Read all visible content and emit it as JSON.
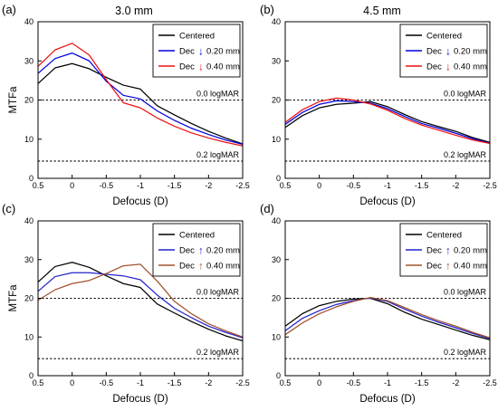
{
  "figure": {
    "panels_titles": [
      "3.0 mm",
      "4.5 mm"
    ]
  },
  "chart_data": [
    {
      "panel_label": "(a)",
      "title": "3.0 mm",
      "type": "line",
      "xlabel": "Defocus (D)",
      "ylabel": "MTFa",
      "xlim": [
        0.5,
        -2.5
      ],
      "ylim": [
        0,
        40
      ],
      "xticks": [
        "0.5",
        "0",
        "-0.5",
        "-1",
        "-1.5",
        "-2",
        "-2.5"
      ],
      "yticks": [
        "0",
        "10",
        "20",
        "30",
        "40"
      ],
      "legend_position": "top-right",
      "ref_lines": [
        {
          "y": 20,
          "label": "0.0 logMAR"
        },
        {
          "y": 4.4,
          "label": "0.2 logMAR"
        }
      ],
      "series": [
        {
          "name": "Centered",
          "color": "#000000",
          "x": [
            0.5,
            0.25,
            0.0,
            -0.25,
            -0.5,
            -0.75,
            -1.0,
            -1.25,
            -1.5,
            -1.75,
            -2.0,
            -2.25,
            -2.5
          ],
          "y": [
            24.2,
            28.2,
            29.3,
            28.0,
            25.8,
            23.8,
            22.8,
            18.5,
            16.2,
            14.0,
            12.0,
            10.3,
            8.8
          ]
        },
        {
          "name": "Dec 0.20 mm",
          "arrow": "down",
          "color": "#0000dd",
          "x": [
            0.5,
            0.25,
            0.0,
            -0.25,
            -0.5,
            -0.75,
            -1.0,
            -1.25,
            -1.5,
            -1.75,
            -2.0,
            -2.25,
            -2.5
          ],
          "y": [
            26.8,
            30.6,
            32.0,
            30.0,
            24.8,
            21.2,
            20.3,
            17.2,
            14.8,
            12.8,
            11.2,
            9.8,
            8.7
          ]
        },
        {
          "name": "Dec 0.40 mm",
          "arrow": "down",
          "color": "#ee1111",
          "x": [
            0.5,
            0.25,
            0.0,
            -0.25,
            -0.5,
            -0.75,
            -1.0,
            -1.25,
            -1.5,
            -1.75,
            -2.0,
            -2.25,
            -2.5
          ],
          "y": [
            28.6,
            32.8,
            34.5,
            31.5,
            25.2,
            19.3,
            18.0,
            15.4,
            13.3,
            11.6,
            10.3,
            9.2,
            8.3
          ]
        }
      ]
    },
    {
      "panel_label": "(b)",
      "title": "4.5 mm",
      "type": "line",
      "xlabel": "Defocus (D)",
      "ylabel": "",
      "xlim": [
        0.5,
        -2.5
      ],
      "ylim": [
        0,
        40
      ],
      "xticks": [
        "0.5",
        "0",
        "-0.5",
        "-1",
        "-1.5",
        "-2",
        "-2.5"
      ],
      "yticks": [
        "0",
        "10",
        "20",
        "30",
        "40"
      ],
      "legend_position": "top-right",
      "ref_lines": [
        {
          "y": 20,
          "label": "0.0 logMAR"
        },
        {
          "y": 4.4,
          "label": "0.2 logMAR"
        }
      ],
      "series": [
        {
          "name": "Centered",
          "color": "#000000",
          "x": [
            0.5,
            0.25,
            0.0,
            -0.25,
            -0.5,
            -0.75,
            -1.0,
            -1.25,
            -1.5,
            -1.75,
            -2.0,
            -2.25,
            -2.5
          ],
          "y": [
            13.0,
            16.0,
            18.0,
            18.9,
            19.2,
            19.6,
            18.3,
            16.3,
            14.5,
            13.2,
            12.0,
            10.4,
            9.2
          ]
        },
        {
          "name": "Dec 0.20 mm",
          "arrow": "down",
          "color": "#0000dd",
          "x": [
            0.5,
            0.25,
            0.0,
            -0.25,
            -0.5,
            -0.75,
            -1.0,
            -1.25,
            -1.5,
            -1.75,
            -2.0,
            -2.25,
            -2.5
          ],
          "y": [
            13.8,
            16.8,
            18.9,
            19.8,
            19.6,
            19.2,
            17.8,
            15.8,
            14.0,
            12.8,
            11.5,
            10.1,
            9.0
          ]
        },
        {
          "name": "Dec 0.40 mm",
          "arrow": "down",
          "color": "#ee1111",
          "x": [
            0.5,
            0.25,
            0.0,
            -0.25,
            -0.5,
            -0.75,
            -1.0,
            -1.25,
            -1.5,
            -1.75,
            -2.0,
            -2.25,
            -2.5
          ],
          "y": [
            14.3,
            17.5,
            19.6,
            20.5,
            20.0,
            19.0,
            17.4,
            15.3,
            13.6,
            12.3,
            11.0,
            9.8,
            8.9
          ]
        }
      ]
    },
    {
      "panel_label": "(c)",
      "title": "",
      "type": "line",
      "xlabel": "Defocus (D)",
      "ylabel": "MTFa",
      "xlim": [
        0.5,
        -2.5
      ],
      "ylim": [
        0,
        40
      ],
      "xticks": [
        "0.5",
        "0",
        "-0.5",
        "-1",
        "-1.5",
        "-2",
        "-2.5"
      ],
      "yticks": [
        "0",
        "10",
        "20",
        "30",
        "40"
      ],
      "legend_position": "top-right",
      "ref_lines": [
        {
          "y": 20,
          "label": "0.0 logMAR"
        },
        {
          "y": 4.4,
          "label": "0.2 logMAR"
        }
      ],
      "series": [
        {
          "name": "Centered",
          "color": "#000000",
          "x": [
            0.5,
            0.25,
            0.0,
            -0.25,
            -0.5,
            -0.75,
            -1.0,
            -1.25,
            -1.5,
            -1.75,
            -2.0,
            -2.25,
            -2.5
          ],
          "y": [
            24.2,
            28.2,
            29.3,
            28.0,
            25.8,
            23.8,
            22.8,
            18.5,
            16.2,
            14.0,
            12.0,
            10.3,
            9.0
          ]
        },
        {
          "name": "Dec 0.20 mm",
          "arrow": "up",
          "color": "#2222cc",
          "x": [
            0.5,
            0.25,
            0.0,
            -0.25,
            -0.5,
            -0.75,
            -1.0,
            -1.25,
            -1.5,
            -1.75,
            -2.0,
            -2.25,
            -2.5
          ],
          "y": [
            21.8,
            25.6,
            26.6,
            26.6,
            26.2,
            25.8,
            24.8,
            20.8,
            17.4,
            15.0,
            12.8,
            11.2,
            9.8
          ]
        },
        {
          "name": "Dec 0.40 mm",
          "arrow": "up",
          "color": "#a0522d",
          "x": [
            0.5,
            0.25,
            0.0,
            -0.25,
            -0.5,
            -0.75,
            -1.0,
            -1.25,
            -1.5,
            -1.75,
            -2.0,
            -2.25,
            -2.5
          ],
          "y": [
            19.5,
            22.2,
            23.8,
            24.6,
            26.4,
            28.4,
            28.8,
            24.4,
            19.2,
            16.0,
            13.4,
            11.6,
            10.0
          ]
        }
      ]
    },
    {
      "panel_label": "(d)",
      "title": "",
      "type": "line",
      "xlabel": "Defocus (D)",
      "ylabel": "",
      "xlim": [
        0.5,
        -2.5
      ],
      "ylim": [
        0,
        40
      ],
      "xticks": [
        "0.5",
        "0",
        "-0.5",
        "-1",
        "-1.5",
        "-2",
        "-2.5"
      ],
      "yticks": [
        "0",
        "10",
        "20",
        "30",
        "40"
      ],
      "legend_position": "top-right",
      "ref_lines": [
        {
          "y": 20,
          "label": "0.0 logMAR"
        },
        {
          "y": 4.4,
          "label": "0.2 logMAR"
        }
      ],
      "series": [
        {
          "name": "Centered",
          "color": "#000000",
          "x": [
            0.5,
            0.25,
            0.0,
            -0.25,
            -0.5,
            -0.75,
            -1.0,
            -1.25,
            -1.5,
            -1.75,
            -2.0,
            -2.25,
            -2.5
          ],
          "y": [
            12.8,
            16.0,
            18.1,
            19.2,
            19.8,
            20.0,
            18.6,
            16.4,
            14.6,
            13.2,
            11.8,
            10.4,
            9.3
          ]
        },
        {
          "name": "Dec 0.20 mm",
          "arrow": "up",
          "color": "#2222cc",
          "x": [
            0.5,
            0.25,
            0.0,
            -0.25,
            -0.5,
            -0.75,
            -1.0,
            -1.25,
            -1.5,
            -1.75,
            -2.0,
            -2.25,
            -2.5
          ],
          "y": [
            11.6,
            14.8,
            16.8,
            18.4,
            19.4,
            20.1,
            19.2,
            17.2,
            15.4,
            13.8,
            12.4,
            10.9,
            9.6
          ]
        },
        {
          "name": "Dec 0.40 mm",
          "arrow": "up",
          "color": "#a0522d",
          "x": [
            0.5,
            0.25,
            0.0,
            -0.25,
            -0.5,
            -0.75,
            -1.0,
            -1.25,
            -1.5,
            -1.75,
            -2.0,
            -2.25,
            -2.5
          ],
          "y": [
            10.6,
            13.6,
            16.0,
            17.8,
            19.2,
            20.2,
            19.4,
            17.6,
            15.8,
            14.2,
            12.8,
            11.2,
            9.8
          ]
        }
      ]
    }
  ]
}
